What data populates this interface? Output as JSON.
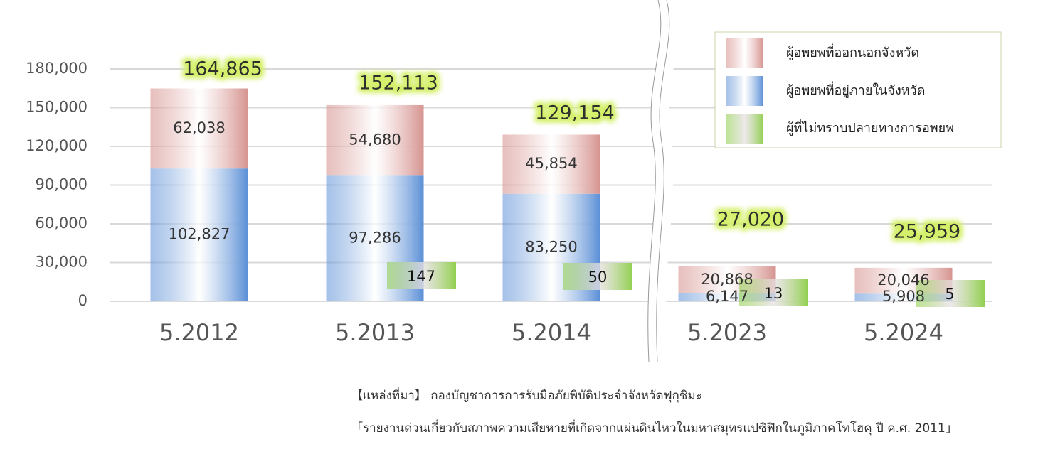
{
  "chart_data": {
    "type": "stacked-bar",
    "categories": [
      "5.2012",
      "5.2013",
      "5.2014",
      "5.2023",
      "5.2024"
    ],
    "series": [
      {
        "name": "ผู้อพยพที่อยู่ภายในจังหวัด",
        "color": "#5b8fd6",
        "values": [
          102827,
          97286,
          83250,
          6147,
          5908
        ],
        "value_labels": [
          "102,827",
          "97,286",
          "83,250",
          "6,147",
          "5,908"
        ]
      },
      {
        "name": "ผู้อพยพที่ออกนอกจังหวัด",
        "color": "#d69490",
        "values": [
          62038,
          54680,
          45854,
          20868,
          20046
        ],
        "value_labels": [
          "62,038",
          "54,680",
          "45,854",
          "20,868",
          "20,046"
        ]
      },
      {
        "name": "ผู้ที่ไม่ทราบปลายทางการอพยพ",
        "color": "#92d050",
        "values": [
          null,
          147,
          50,
          13,
          5
        ]
      }
    ],
    "totals": {
      "values": [
        164865,
        152113,
        129154,
        27020,
        25959
      ],
      "value_labels": [
        "164,865",
        "152,113",
        "129,154",
        "27,020",
        "25,959"
      ]
    },
    "ylim": [
      0,
      180000
    ],
    "yticks": [
      0,
      {
        "value": 30000,
        "label": "30,000"
      },
      {
        "value": 60000,
        "label": "60,000"
      },
      {
        "value": 90000,
        "label": "90,000"
      },
      {
        "value": 120000,
        "label": "120,000"
      },
      {
        "value": 150000,
        "label": "150,000"
      },
      {
        "value": 180000,
        "label": "180,000"
      }
    ],
    "grid": true,
    "legend": "top-right",
    "source": [
      "【แหล่งที่มา】 กองบัญชาการการรับมือภัยพิบัติประจำจังหวัดฟุกุชิมะ",
      "「รายงานด่วนเกี่ยวกับสภาพความเสียหายที่เกิดจากแผ่นดินไหวในมหาสมุทรแปซิฟิกในภูมิภาคโทโฮคุ ปี ค.ศ. 2011」"
    ]
  }
}
